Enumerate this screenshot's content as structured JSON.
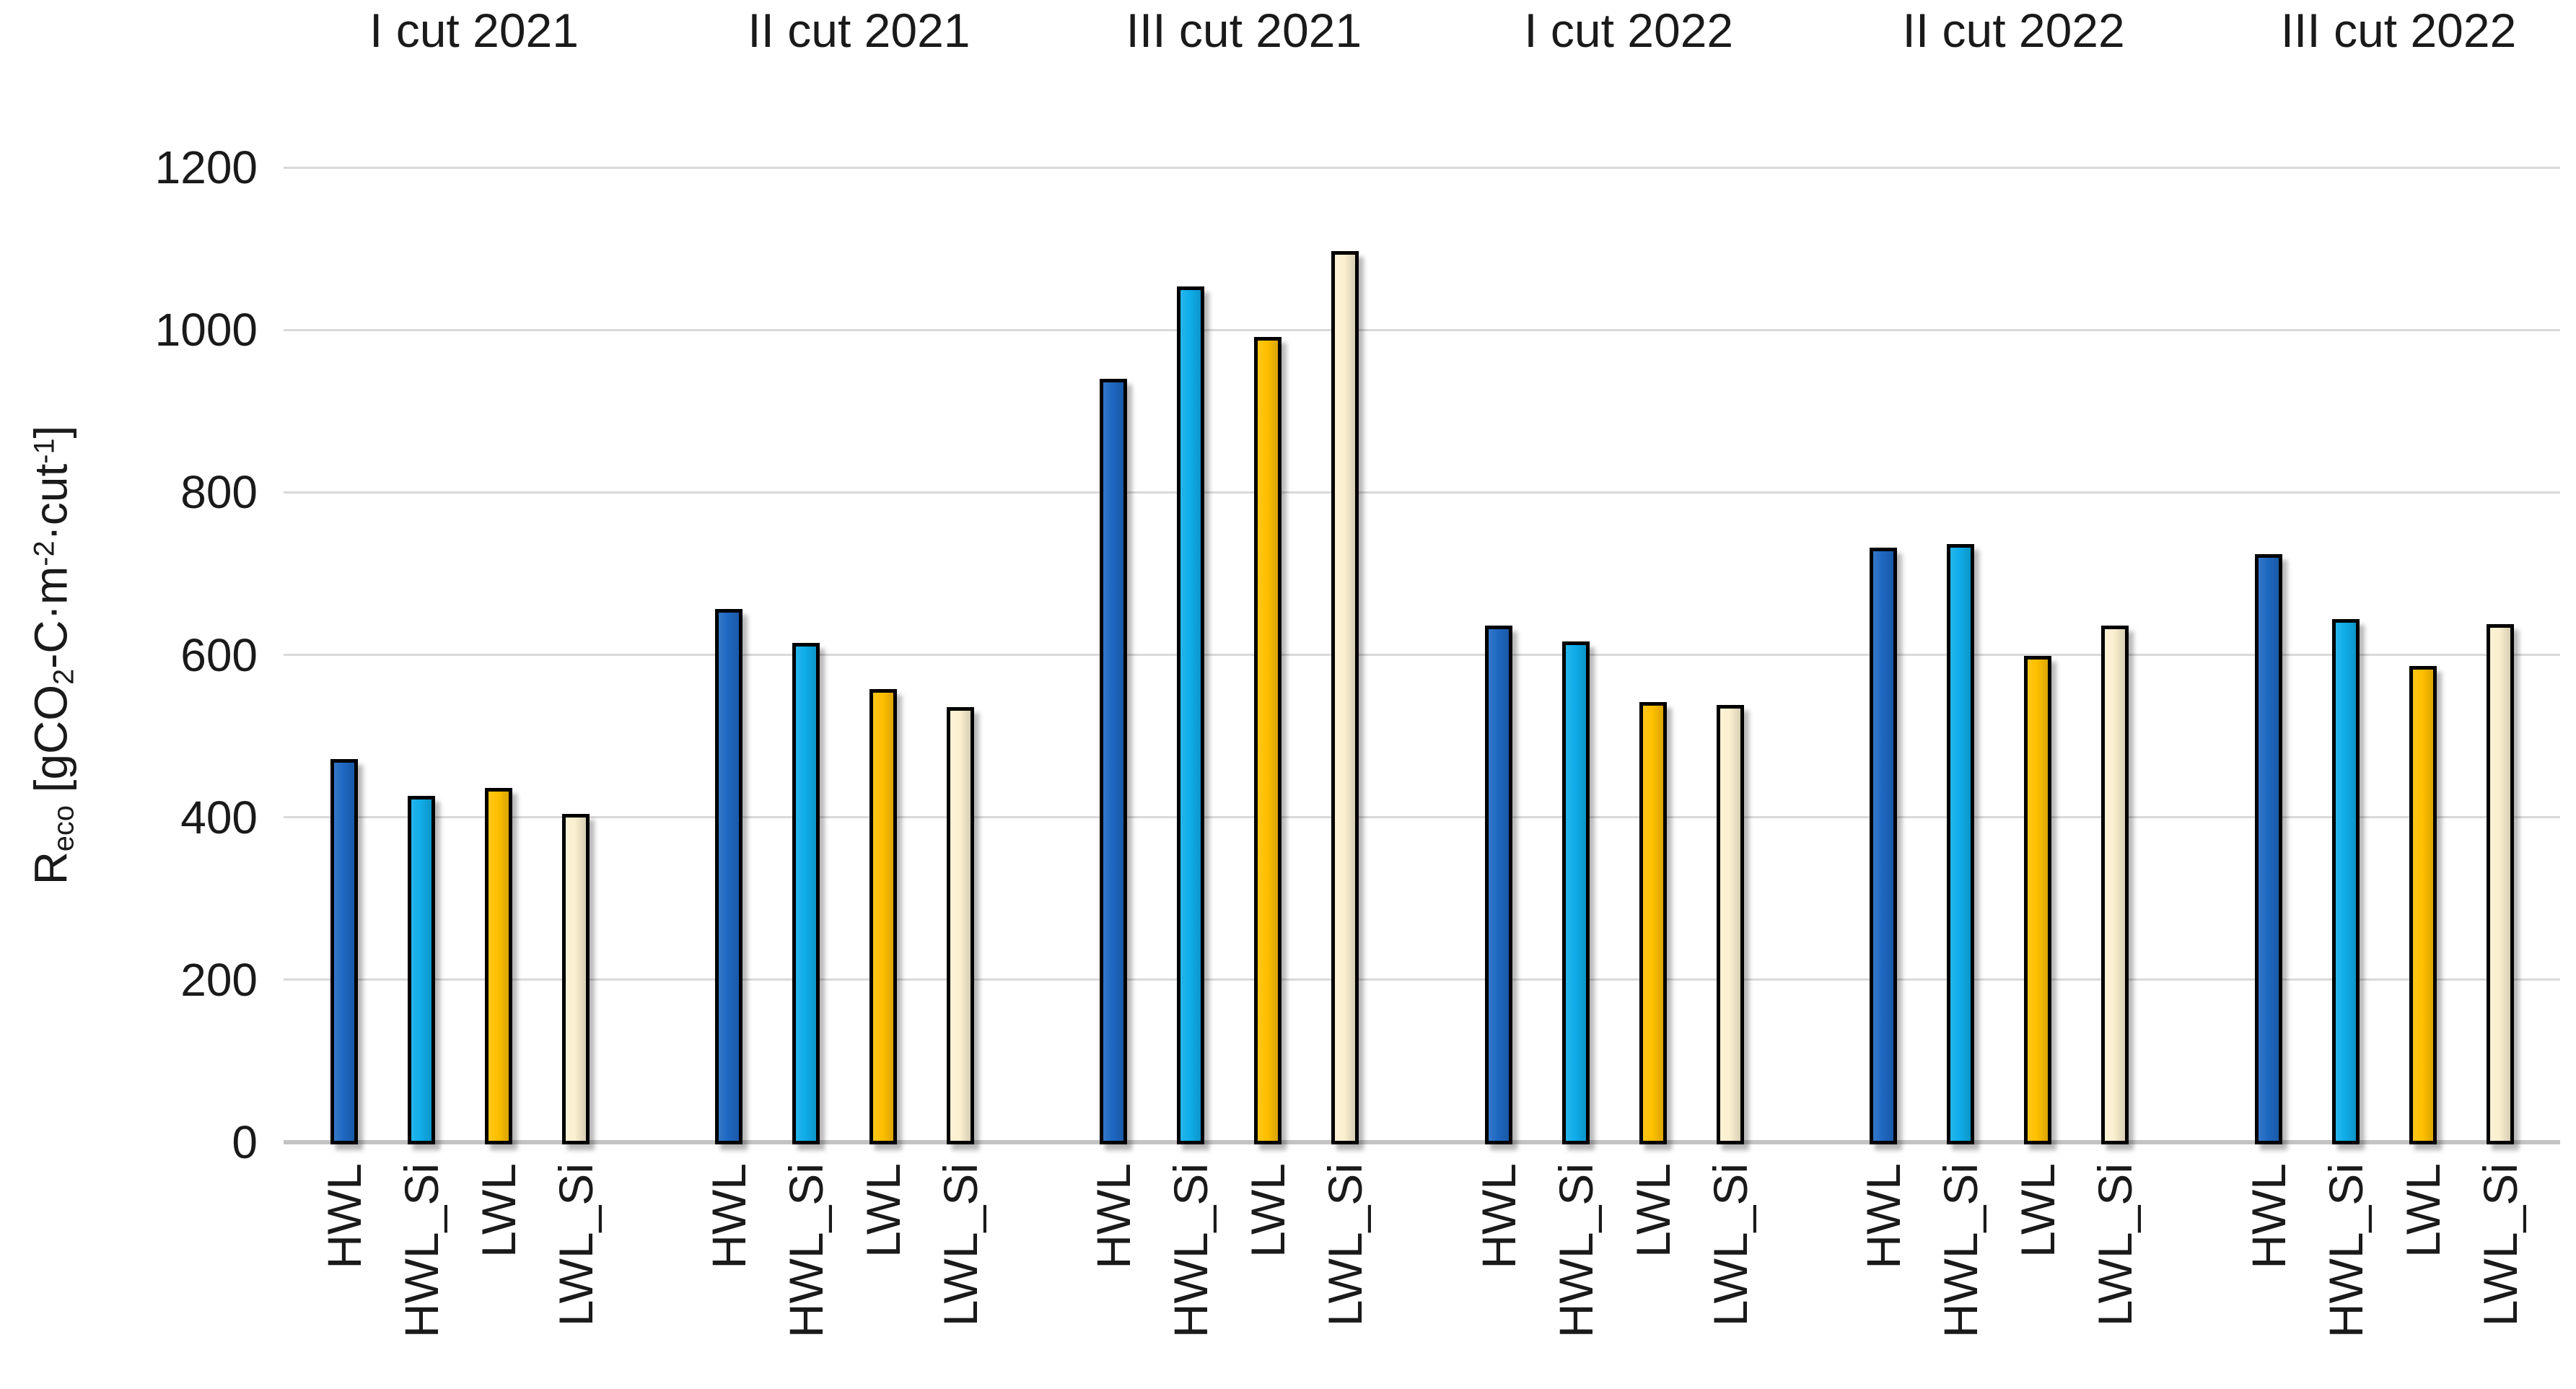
{
  "figure": {
    "background": "#ffffff",
    "text_color": "#1a1a1a",
    "gridline_color": "#D9D9D9",
    "baseline_color": "#C3C3C3",
    "bar_border_color": "#000000"
  },
  "y_axis_title_segments": [
    {
      "text": "R",
      "style": "normal"
    },
    {
      "text": "eco",
      "style": "sub"
    },
    {
      "text": " [gCO",
      "style": "normal"
    },
    {
      "text": "2",
      "style": "sub"
    },
    {
      "text": "-C·m",
      "style": "normal"
    },
    {
      "text": "-2",
      "style": "sup"
    },
    {
      "text": "·cut",
      "style": "normal"
    },
    {
      "text": "-1",
      "style": "sup"
    },
    {
      "text": "]",
      "style": "normal"
    }
  ],
  "chart_data": {
    "type": "bar",
    "title": "",
    "ylabel": "Reco [gCO2-C·m-2·cut-1]",
    "xlabel": "",
    "ylim": [
      0,
      1200
    ],
    "ytick_step": 200,
    "ytick_labels": [
      "0",
      "200",
      "400",
      "600",
      "800",
      "1000",
      "1200"
    ],
    "grid": "horizontal gridlines on",
    "legend_position": "none",
    "groups": [
      "I cut 2021",
      "II cut 2021",
      "III cut 2021",
      "I cut 2022",
      "II cut 2022",
      "III cut 2022"
    ],
    "bar_labels": [
      "HWL",
      "HWL_Si",
      "LWL",
      "LWL_Si"
    ],
    "series": [
      {
        "name": "HWL",
        "color": "#1E68C2",
        "values": [
          472,
          656,
          940,
          636,
          732,
          724
        ]
      },
      {
        "name": "HWL_Si",
        "color": "#0FADE9",
        "values": [
          426,
          615,
          1053,
          616,
          736,
          644
        ]
      },
      {
        "name": "LWL",
        "color": "#FFC000",
        "values": [
          436,
          558,
          991,
          542,
          599,
          586
        ]
      },
      {
        "name": "LWL_Si",
        "color": "#FBF0D0",
        "values": [
          404,
          536,
          1097,
          538,
          636,
          638
        ]
      }
    ]
  }
}
